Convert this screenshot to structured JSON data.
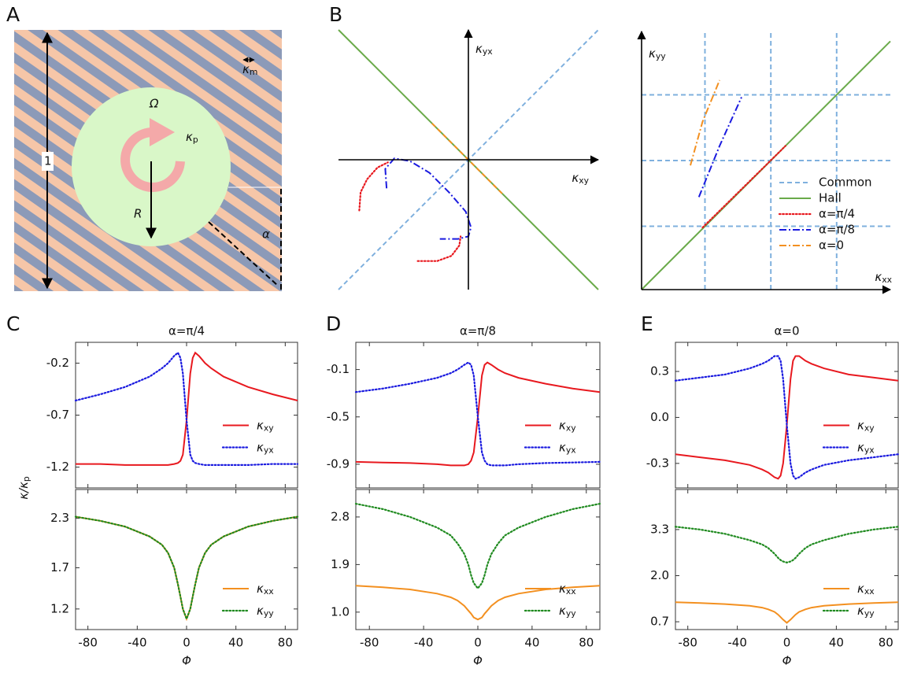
{
  "panels": [
    "A",
    "B",
    "C",
    "D",
    "E"
  ],
  "diagram": {
    "omega": "Ω",
    "kappa_p": "κp",
    "radius": "R",
    "side": "1",
    "angle": "α",
    "kappa_m": "κm"
  },
  "chart_data": [
    {
      "type": "parametric",
      "xlabel": "κxy",
      "ylabel": "κyx",
      "xlim": [
        -1,
        1
      ],
      "ylim": [
        -1,
        1
      ],
      "series": [
        {
          "color": "#7fb0de",
          "style": "dashed",
          "x": [
            -1,
            1
          ],
          "y": [
            -1,
            1
          ]
        },
        {
          "color": "#6aaa4a",
          "style": "solid",
          "x": [
            -1,
            1
          ],
          "y": [
            1,
            -1
          ]
        },
        {
          "color": "#f39020",
          "style": "dashed",
          "x": [
            -0.28,
            0.27
          ],
          "y": [
            0.28,
            -0.27
          ]
        },
        {
          "color": "#e8191f",
          "style": "dotted",
          "x": [
            -0.84,
            -0.83,
            -0.78,
            -0.7,
            -0.62,
            null,
            -0.39,
            -0.24,
            -0.13,
            -0.07,
            -0.06
          ],
          "y": [
            -0.39,
            -0.25,
            -0.15,
            -0.06,
            -0.02,
            null,
            -0.78,
            -0.78,
            -0.74,
            -0.66,
            -0.59
          ]
        },
        {
          "color": "#1a1adf",
          "style": "dashdot",
          "x": [
            -0.63,
            -0.64,
            -0.57,
            -0.45,
            -0.3,
            -0.15,
            -0.02,
            0.02,
            0,
            -0.08,
            -0.22
          ],
          "y": [
            -0.22,
            -0.07,
            0.01,
            -0.01,
            -0.1,
            -0.25,
            -0.4,
            -0.52,
            -0.59,
            -0.61,
            -0.61
          ]
        }
      ]
    },
    {
      "type": "parametric",
      "xlabel": "κxx",
      "ylabel": "κyy",
      "xlim": [
        0,
        1.02
      ],
      "ylim": [
        0,
        1.06
      ],
      "legend": "lower right",
      "series": [
        {
          "name": "Common",
          "color": "#7fb0de",
          "style": "dashed",
          "x": [
            0.26,
            0.26,
            null,
            0.53,
            0.53,
            null,
            0.8,
            0.8,
            null,
            0,
            1.02,
            null,
            0,
            1.02,
            null,
            0,
            1.02
          ],
          "y": [
            0,
            1.06,
            null,
            0,
            1.06,
            null,
            0,
            1.06,
            null,
            0.26,
            0.26,
            null,
            0.53,
            0.53,
            null,
            0.8,
            0.8
          ]
        },
        {
          "name": "Hall",
          "color": "#6aaa4a",
          "style": "solid",
          "x": [
            0,
            1.02
          ],
          "y": [
            0,
            1.02
          ]
        },
        {
          "name": "α=π/4",
          "color": "#e8191f",
          "style": "dotted",
          "x": [
            0.25,
            0.59
          ],
          "y": [
            0.255,
            0.59
          ]
        },
        {
          "name": "α=π/8",
          "color": "#1a1adf",
          "style": "dashdot",
          "x": [
            0.235,
            0.32,
            0.41
          ],
          "y": [
            0.38,
            0.59,
            0.79
          ]
        },
        {
          "name": "α=0",
          "color": "#f39020",
          "style": "dashdot",
          "x": [
            0.2,
            0.25,
            0.32
          ],
          "y": [
            0.51,
            0.69,
            0.86
          ]
        }
      ]
    },
    {
      "type": "line",
      "title": "α=π/4",
      "ylabel": "κ/κp",
      "x": [
        -90,
        -70,
        -50,
        -30,
        -20,
        -15,
        -10,
        -7,
        -5,
        -3,
        0,
        3,
        5,
        7,
        10,
        15,
        20,
        30,
        50,
        70,
        90
      ],
      "xlim": [
        -90,
        90
      ],
      "xticks": [
        -80,
        -40,
        0,
        40,
        80
      ],
      "show_xtick_labels": false,
      "ylim": [
        -1.4,
        0.0
      ],
      "yticks": [
        -1.2,
        -0.7,
        -0.2
      ],
      "legend": "center right",
      "series": [
        {
          "name": "κxy",
          "color": "#e8191f",
          "style": "solid",
          "values": [
            -1.17,
            -1.17,
            -1.18,
            -1.18,
            -1.18,
            -1.18,
            -1.17,
            -1.16,
            -1.14,
            -1.08,
            -0.75,
            -0.3,
            -0.15,
            -0.1,
            -0.13,
            -0.2,
            -0.25,
            -0.33,
            -0.43,
            -0.5,
            -0.56
          ]
        },
        {
          "name": "κyx",
          "color": "#1a1adf",
          "style": "dotted",
          "values": [
            -0.56,
            -0.5,
            -0.43,
            -0.33,
            -0.25,
            -0.2,
            -0.13,
            -0.1,
            -0.15,
            -0.3,
            -0.75,
            -1.08,
            -1.14,
            -1.16,
            -1.17,
            -1.18,
            -1.18,
            -1.18,
            -1.18,
            -1.17,
            -1.17
          ]
        }
      ]
    },
    {
      "type": "line",
      "xlabel": "Φ",
      "x": [
        -90,
        -70,
        -50,
        -30,
        -20,
        -15,
        -10,
        -7,
        -5,
        -3,
        0,
        3,
        5,
        7,
        10,
        15,
        20,
        30,
        50,
        70,
        90
      ],
      "xlim": [
        -90,
        90
      ],
      "xticks": [
        -80,
        -40,
        0,
        40,
        80
      ],
      "show_xtick_labels": true,
      "ylim": [
        0.95,
        2.65
      ],
      "yticks": [
        1.2,
        1.7,
        2.3
      ],
      "legend": "lower right",
      "series": [
        {
          "name": "κxx",
          "color": "#f39020",
          "style": "solid",
          "values": [
            2.32,
            2.27,
            2.2,
            2.08,
            1.98,
            1.88,
            1.7,
            1.5,
            1.35,
            1.2,
            1.08,
            1.2,
            1.35,
            1.5,
            1.7,
            1.88,
            1.98,
            2.08,
            2.2,
            2.27,
            2.32
          ]
        },
        {
          "name": "κyy",
          "color": "#1f8a1f",
          "style": "dotted",
          "values": [
            2.32,
            2.27,
            2.2,
            2.08,
            1.98,
            1.88,
            1.7,
            1.5,
            1.35,
            1.2,
            1.08,
            1.2,
            1.35,
            1.5,
            1.7,
            1.88,
            1.98,
            2.08,
            2.2,
            2.27,
            2.32
          ]
        }
      ]
    },
    {
      "type": "line",
      "title": "α=π/8",
      "x": [
        -90,
        -70,
        -50,
        -30,
        -20,
        -15,
        -10,
        -7,
        -5,
        -3,
        0,
        3,
        5,
        7,
        10,
        15,
        20,
        30,
        50,
        70,
        90
      ],
      "xlim": [
        -90,
        90
      ],
      "xticks": [
        -80,
        -40,
        0,
        40,
        80
      ],
      "show_xtick_labels": false,
      "ylim": [
        -1.1,
        0.13
      ],
      "yticks": [
        -0.9,
        -0.5,
        -0.1
      ],
      "legend": "center right",
      "series": [
        {
          "name": "κxy",
          "color": "#e8191f",
          "style": "solid",
          "values": [
            -0.88,
            -0.885,
            -0.89,
            -0.9,
            -0.91,
            -0.91,
            -0.91,
            -0.9,
            -0.87,
            -0.8,
            -0.5,
            -0.15,
            -0.06,
            -0.04,
            -0.06,
            -0.1,
            -0.13,
            -0.17,
            -0.22,
            -0.26,
            -0.29
          ]
        },
        {
          "name": "κyx",
          "color": "#1a1adf",
          "style": "dotted",
          "values": [
            -0.29,
            -0.26,
            -0.22,
            -0.17,
            -0.13,
            -0.1,
            -0.06,
            -0.04,
            -0.06,
            -0.15,
            -0.5,
            -0.8,
            -0.87,
            -0.9,
            -0.91,
            -0.91,
            -0.91,
            -0.9,
            -0.89,
            -0.885,
            -0.88
          ]
        }
      ]
    },
    {
      "type": "line",
      "xlabel": "Φ",
      "x": [
        -90,
        -70,
        -50,
        -30,
        -20,
        -15,
        -10,
        -7,
        -5,
        -3,
        0,
        3,
        5,
        7,
        10,
        15,
        20,
        30,
        50,
        70,
        90
      ],
      "xlim": [
        -90,
        90
      ],
      "xticks": [
        -80,
        -40,
        0,
        40,
        80
      ],
      "show_xtick_labels": true,
      "ylim": [
        0.67,
        3.32
      ],
      "yticks": [
        {
          "value": 1,
          "label": "1.0"
        },
        1.9,
        2.8
      ],
      "legend": "lower right",
      "series": [
        {
          "name": "κxx",
          "color": "#f39020",
          "style": "solid",
          "values": [
            1.5,
            1.47,
            1.43,
            1.35,
            1.28,
            1.22,
            1.12,
            1.03,
            0.97,
            0.9,
            0.86,
            0.9,
            0.97,
            1.03,
            1.12,
            1.22,
            1.28,
            1.35,
            1.43,
            1.47,
            1.5
          ]
        },
        {
          "name": "κyy",
          "color": "#1f8a1f",
          "style": "dotted",
          "values": [
            3.05,
            2.95,
            2.8,
            2.6,
            2.45,
            2.3,
            2.1,
            1.9,
            1.7,
            1.55,
            1.45,
            1.55,
            1.7,
            1.9,
            2.1,
            2.3,
            2.45,
            2.6,
            2.8,
            2.95,
            3.05
          ]
        }
      ]
    },
    {
      "type": "line",
      "title": "α=0",
      "x": [
        -90,
        -70,
        -50,
        -30,
        -20,
        -15,
        -10,
        -7,
        -5,
        -3,
        0,
        3,
        5,
        7,
        10,
        15,
        20,
        30,
        50,
        70,
        90
      ],
      "xlim": [
        -90,
        90
      ],
      "xticks": [
        -80,
        -40,
        0,
        40,
        80
      ],
      "show_xtick_labels": false,
      "ylim": [
        -0.46,
        0.49
      ],
      "yticks": [
        -0.3,
        {
          "value": 0,
          "label": "0.0"
        },
        0.3
      ],
      "legend": "center right",
      "series": [
        {
          "name": "κxy",
          "color": "#e8191f",
          "style": "solid",
          "values": [
            -0.24,
            -0.26,
            -0.28,
            -0.31,
            -0.34,
            -0.36,
            -0.39,
            -0.4,
            -0.38,
            -0.3,
            -0.05,
            0.25,
            0.37,
            0.4,
            0.4,
            0.37,
            0.35,
            0.32,
            0.28,
            0.26,
            0.24
          ]
        },
        {
          "name": "κyx",
          "color": "#1a1adf",
          "style": "dotted",
          "values": [
            0.24,
            0.26,
            0.28,
            0.32,
            0.35,
            0.37,
            0.4,
            0.4,
            0.37,
            0.25,
            -0.05,
            -0.3,
            -0.38,
            -0.4,
            -0.39,
            -0.36,
            -0.34,
            -0.31,
            -0.28,
            -0.26,
            -0.24
          ]
        }
      ]
    },
    {
      "type": "line",
      "xlabel": "Φ",
      "x": [
        -90,
        -70,
        -50,
        -30,
        -20,
        -15,
        -10,
        -7,
        -5,
        -3,
        0,
        3,
        5,
        7,
        10,
        15,
        20,
        30,
        50,
        70,
        90
      ],
      "xlim": [
        -90,
        90
      ],
      "xticks": [
        -80,
        -40,
        0,
        40,
        80
      ],
      "show_xtick_labels": true,
      "ylim": [
        0.48,
        4.43
      ],
      "yticks": [
        0.7,
        {
          "value": 2,
          "label": "2.0"
        },
        3.3
      ],
      "legend": "lower right",
      "series": [
        {
          "name": "κxx",
          "color": "#f39020",
          "style": "solid",
          "values": [
            1.25,
            1.23,
            1.2,
            1.15,
            1.1,
            1.05,
            0.98,
            0.9,
            0.83,
            0.76,
            0.67,
            0.76,
            0.83,
            0.9,
            0.98,
            1.05,
            1.1,
            1.15,
            1.2,
            1.23,
            1.25
          ]
        },
        {
          "name": "κyy",
          "color": "#1f8a1f",
          "style": "dotted",
          "values": [
            3.38,
            3.3,
            3.18,
            3.0,
            2.88,
            2.78,
            2.62,
            2.5,
            2.44,
            2.4,
            2.37,
            2.4,
            2.44,
            2.5,
            2.62,
            2.78,
            2.88,
            3.0,
            3.18,
            3.3,
            3.38
          ]
        }
      ]
    }
  ]
}
